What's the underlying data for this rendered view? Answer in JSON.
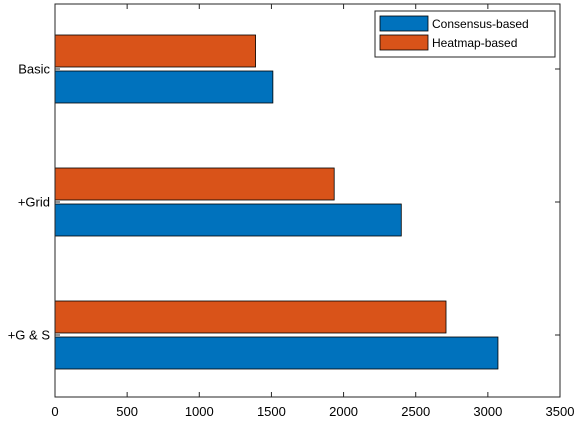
{
  "chart_data": {
    "type": "bar",
    "orientation": "horizontal",
    "categories": [
      "Basic",
      "+Grid",
      "+G & S"
    ],
    "series": [
      {
        "name": "Consensus-based",
        "values": [
          1510,
          2400,
          3070
        ],
        "color": "#0072BD"
      },
      {
        "name": "Heatmap-based",
        "values": [
          1390,
          1935,
          2710
        ],
        "color": "#D95319"
      }
    ],
    "xlim": [
      0,
      3500
    ],
    "xticks": [
      0,
      500,
      1000,
      1500,
      2000,
      2500,
      3000,
      3500
    ],
    "title": "",
    "xlabel": "",
    "ylabel": "",
    "grid": false,
    "legend_position": "top-right",
    "box": true
  }
}
